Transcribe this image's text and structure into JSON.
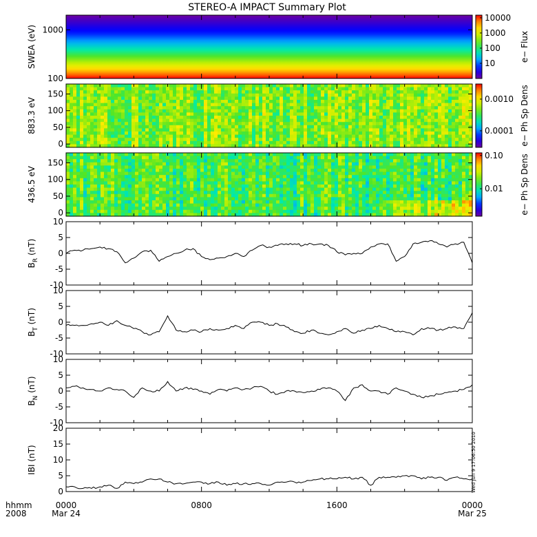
{
  "title": "STEREO-A IMPACT Summary Plot",
  "timestamp": "Wed Jun  9 17:06:50 2010",
  "time_axis": {
    "row_labels": [
      "hhmm",
      "2008"
    ],
    "ticks": [
      {
        "hour": 0,
        "top": "0000",
        "bottom": "Mar 24"
      },
      {
        "hour": 8,
        "top": "0800",
        "bottom": ""
      },
      {
        "hour": 16,
        "top": "1600",
        "bottom": ""
      },
      {
        "hour": 24,
        "top": "0000",
        "bottom": "Mar 25"
      }
    ],
    "range_hours": [
      0,
      24
    ]
  },
  "chart_data": [
    {
      "type": "heatmap",
      "ylabel": "SWEA (eV)",
      "yscale": "log",
      "ylim": [
        100,
        2000
      ],
      "yticks": [
        "100",
        "1000"
      ],
      "colorbar": {
        "label": "e− Flux",
        "scale": "log",
        "range": [
          1,
          15000
        ],
        "ticks": [
          "10",
          "100",
          "1000",
          "10000"
        ]
      },
      "description_values": {
        "flux_at_100eV": 15000,
        "flux_at_1000eV": 6,
        "flux_at_2000eV": 1
      }
    },
    {
      "type": "heatmap",
      "ylabel": "883.3 eV",
      "ylim": [
        -10,
        180
      ],
      "yticks": [
        "0",
        "50",
        "100",
        "150"
      ],
      "colorbar": {
        "label": "e− Ph Sp Dens",
        "scale": "log",
        "range": [
          3e-05,
          0.003
        ],
        "ticks": [
          "0.0001",
          "0.0010"
        ]
      },
      "typical_value": 0.0005
    },
    {
      "type": "heatmap",
      "ylabel": "436.5 eV",
      "ylim": [
        -10,
        180
      ],
      "yticks": [
        "0",
        "50",
        "100",
        "150"
      ],
      "colorbar": {
        "label": "e− Ph Sp Dens",
        "scale": "log",
        "range": [
          0.0015,
          0.12
        ],
        "ticks": [
          "0.01",
          "0.10"
        ]
      },
      "typical_value": 0.015
    },
    {
      "type": "line",
      "ylabel_main": "B",
      "ylabel_sub": "R",
      "ylabel_unit": " (nT)",
      "ylim": [
        -10,
        10
      ],
      "yticks": [
        "-10",
        "-5",
        "0",
        "5",
        "10"
      ],
      "x": [
        0,
        0.5,
        1,
        1.5,
        2,
        2.5,
        3,
        3.5,
        4,
        4.5,
        5,
        5.5,
        6,
        6.5,
        7,
        7.5,
        8,
        8.5,
        9,
        9.5,
        10,
        10.5,
        11,
        11.5,
        12,
        12.5,
        13,
        13.5,
        14,
        14.5,
        15,
        15.5,
        16,
        16.5,
        17,
        17.5,
        18,
        18.5,
        19,
        19.5,
        20,
        20.5,
        21,
        21.5,
        22,
        22.5,
        23,
        23.5,
        24
      ],
      "y": [
        0,
        1,
        1,
        1.5,
        2,
        1.5,
        0.5,
        -3,
        -1.5,
        0.5,
        1,
        -2.5,
        -1,
        0,
        1,
        1.5,
        -1,
        -2,
        -1.5,
        -1,
        0,
        -1,
        1,
        2.5,
        2,
        2.5,
        3,
        3,
        2.5,
        3,
        3,
        2.5,
        0.5,
        -0.5,
        0,
        0,
        2,
        3,
        3,
        -2.5,
        -1,
        3,
        3.5,
        4,
        3,
        2,
        3,
        3.5,
        -3
      ]
    },
    {
      "type": "line",
      "ylabel_main": "B",
      "ylabel_sub": "T",
      "ylabel_unit": " (nT)",
      "ylim": [
        -10,
        10
      ],
      "yticks": [
        "-10",
        "-5",
        "0",
        "5",
        "10"
      ],
      "x": [
        0,
        0.5,
        1,
        1.5,
        2,
        2.5,
        3,
        3.5,
        4,
        4.5,
        5,
        5.5,
        6,
        6.5,
        7,
        7.5,
        8,
        8.5,
        9,
        9.5,
        10,
        10.5,
        11,
        11.5,
        12,
        12.5,
        13,
        13.5,
        14,
        14.5,
        15,
        15.5,
        16,
        16.5,
        17,
        17.5,
        18,
        18.5,
        19,
        19.5,
        20,
        20.5,
        21,
        21.5,
        22,
        22.5,
        23,
        23.5,
        24
      ],
      "y": [
        -1,
        -1,
        -1,
        -0.5,
        0,
        -1,
        0.5,
        -1,
        -2,
        -3,
        -4,
        -3,
        2,
        -2.5,
        -3,
        -2.5,
        -3,
        -2,
        -2.5,
        -2,
        -1,
        -2,
        0,
        0,
        -1,
        -0.5,
        -1.5,
        -3,
        -3.5,
        -2.5,
        -3.5,
        -4,
        -3,
        -2,
        -3.5,
        -2.5,
        -2,
        -1,
        -2,
        -3,
        -3,
        -4,
        -2,
        -2,
        -2.5,
        -2,
        -1.5,
        -2,
        3
      ]
    },
    {
      "type": "line",
      "ylabel_main": "B",
      "ylabel_sub": "N",
      "ylabel_unit": " (nT)",
      "ylim": [
        -10,
        10
      ],
      "yticks": [
        "-10",
        "-5",
        "0",
        "5",
        "10"
      ],
      "x": [
        0,
        0.5,
        1,
        1.5,
        2,
        2.5,
        3,
        3.5,
        4,
        4.5,
        5,
        5.5,
        6,
        6.5,
        7,
        7.5,
        8,
        8.5,
        9,
        9.5,
        10,
        10.5,
        11,
        11.5,
        12,
        12.5,
        13,
        13.5,
        14,
        14.5,
        15,
        15.5,
        16,
        16.5,
        17,
        17.5,
        18,
        18.5,
        19,
        19.5,
        20,
        20.5,
        21,
        21.5,
        22,
        22.5,
        23,
        23.5,
        24
      ],
      "y": [
        1,
        1.5,
        1,
        0.5,
        0,
        1,
        0.5,
        0,
        -2,
        1,
        0,
        0,
        3,
        0,
        1,
        0.5,
        0,
        -1,
        0.5,
        0,
        1,
        0.5,
        1,
        1.5,
        0,
        -1,
        0,
        0,
        -0.5,
        0,
        0.5,
        1,
        0,
        -3,
        1,
        2,
        0,
        0,
        -1,
        1,
        0,
        -1,
        -2,
        -1.5,
        -1,
        -0.5,
        0,
        0.5,
        2
      ]
    },
    {
      "type": "line",
      "ylabel_main": "IBI",
      "ylabel_sub": "",
      "ylabel_unit": " (nT)",
      "ylim": [
        0,
        20
      ],
      "yticks": [
        "0",
        "5",
        "10",
        "15",
        "20"
      ],
      "x": [
        0,
        0.5,
        1,
        1.5,
        2,
        2.5,
        3,
        3.5,
        4,
        4.5,
        5,
        5.5,
        6,
        6.5,
        7,
        7.5,
        8,
        8.5,
        9,
        9.5,
        10,
        10.5,
        11,
        11.5,
        12,
        12.5,
        13,
        13.5,
        14,
        14.5,
        15,
        15.5,
        16,
        16.5,
        17,
        17.5,
        18,
        18.5,
        19,
        19.5,
        20,
        20.5,
        21,
        21.5,
        22,
        22.5,
        23,
        23.5,
        24
      ],
      "y": [
        1.5,
        1.5,
        1,
        1,
        1.5,
        2,
        1,
        3,
        2.5,
        3,
        4,
        4,
        3,
        2.5,
        2.5,
        3,
        3,
        2.5,
        3,
        2,
        2.5,
        2.5,
        2.5,
        2.5,
        2,
        3,
        3,
        3,
        3,
        3.5,
        4,
        4,
        4,
        4.5,
        4,
        4.5,
        2,
        4.5,
        4.5,
        4.5,
        5,
        5,
        4,
        4.5,
        4.5,
        3.5,
        4.5,
        4,
        4
      ]
    }
  ]
}
